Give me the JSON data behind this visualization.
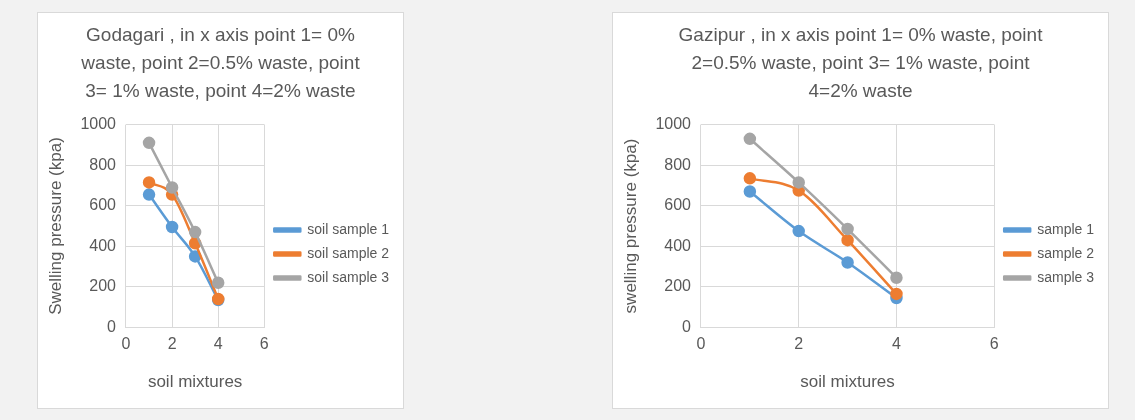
{
  "chart_data": [
    {
      "type": "line",
      "title": "Godagari , in x axis point 1= 0% waste, point 2=0.5% waste, point 3= 1% waste, point 4=2% waste",
      "xlabel": "soil mixtures",
      "ylabel": "Swelling pressure (kpa)",
      "xlim": [
        0,
        6
      ],
      "xticks": [
        0,
        2,
        4,
        6
      ],
      "ylim": [
        0,
        1000
      ],
      "yticks": [
        0,
        200,
        400,
        600,
        800,
        1000
      ],
      "grid": true,
      "legend": "right",
      "marker": "circle",
      "line_style": "solid",
      "series": [
        {
          "name": "soil sample 1",
          "color": "#5b9bd5",
          "x": [
            1,
            2,
            3,
            4
          ],
          "values": [
            655,
            495,
            350,
            135
          ]
        },
        {
          "name": "soil sample 2",
          "color": "#ed7d31",
          "x": [
            1,
            2,
            3,
            4
          ],
          "values": [
            715,
            655,
            415,
            140
          ]
        },
        {
          "name": "soil sample 3",
          "color": "#a5a5a5",
          "x": [
            1,
            2,
            3,
            4
          ],
          "values": [
            910,
            690,
            470,
            220
          ]
        }
      ]
    },
    {
      "type": "line",
      "title": "Gazipur , in x axis point 1= 0% waste, point 2=0.5% waste, point 3= 1% waste, point 4=2% waste",
      "xlabel": "soil mixtures",
      "ylabel": "swelling pressure (kpa)",
      "xlim": [
        0,
        6
      ],
      "xticks": [
        0,
        2,
        4,
        6
      ],
      "ylim": [
        0,
        1000
      ],
      "yticks": [
        0,
        200,
        400,
        600,
        800,
        1000
      ],
      "grid": true,
      "legend": "right",
      "marker": "circle",
      "line_style": "solid",
      "series": [
        {
          "name": "sample 1",
          "color": "#5b9bd5",
          "x": [
            1,
            2,
            3,
            4
          ],
          "values": [
            670,
            475,
            320,
            145
          ]
        },
        {
          "name": "sample 2",
          "color": "#ed7d31",
          "x": [
            1,
            2,
            3,
            4
          ],
          "values": [
            735,
            675,
            430,
            165
          ]
        },
        {
          "name": "sample 3",
          "color": "#a5a5a5",
          "x": [
            1,
            2,
            3,
            4
          ],
          "values": [
            930,
            715,
            485,
            245
          ]
        }
      ]
    }
  ]
}
